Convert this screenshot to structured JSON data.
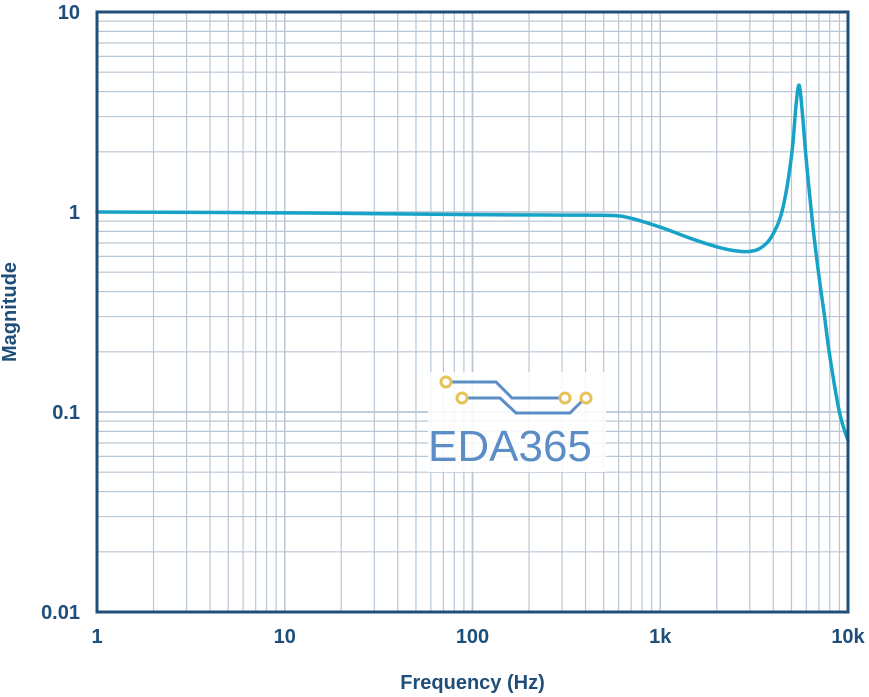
{
  "chart_data": {
    "type": "line",
    "title": "",
    "xlabel": "Frequency (Hz)",
    "ylabel": "Magnitude",
    "xscale": "log",
    "yscale": "log",
    "xlim": [
      1,
      10000
    ],
    "ylim": [
      0.01,
      10
    ],
    "x_ticks": [
      1,
      10,
      100,
      1000,
      10000
    ],
    "x_tick_labels": [
      "1",
      "10",
      "100",
      "1k",
      "10k"
    ],
    "y_ticks": [
      10,
      1,
      0.1,
      0.01
    ],
    "y_tick_labels": [
      "10",
      "1",
      "0.1",
      "0.01"
    ],
    "grid": true,
    "legend": "none",
    "colors": {
      "line": "#17a2c8",
      "grid": "#b8c7d5",
      "frame": "#1f4e79",
      "text": "#1f4e79"
    },
    "series": [
      {
        "x": [
          1,
          10,
          100,
          300,
          550,
          700,
          1000,
          1500,
          2000,
          2500,
          3000,
          3500,
          4000,
          4500,
          5000,
          5300,
          5500,
          5700,
          6000,
          6500,
          7000,
          7500,
          8000,
          9000,
          10000
        ],
        "values": [
          1.0,
          0.99,
          0.97,
          0.965,
          0.96,
          0.93,
          0.84,
          0.73,
          0.67,
          0.64,
          0.635,
          0.67,
          0.78,
          1.05,
          1.9,
          3.5,
          4.3,
          3.2,
          1.8,
          0.85,
          0.48,
          0.3,
          0.19,
          0.1,
          0.072
        ]
      }
    ]
  },
  "watermark": {
    "text": "EDA365",
    "colors": {
      "trace": "#5b8ec6",
      "pad": "#e6c35a"
    }
  }
}
